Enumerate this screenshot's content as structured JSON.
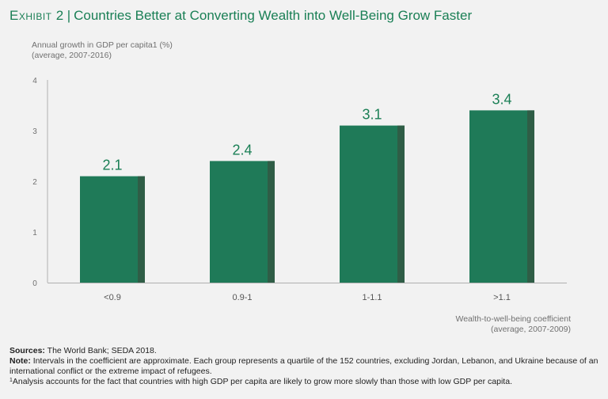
{
  "title": {
    "exhibit": "Exhibit 2",
    "separator": "|",
    "text": "Countries Better at Converting Wealth into Well-Being Grow Faster"
  },
  "chart_data": {
    "type": "bar",
    "categories": [
      "<0.9",
      "0.9-1",
      "1-1.1",
      ">1.1"
    ],
    "values": [
      2.1,
      2.4,
      3.1,
      3.4
    ],
    "value_labels": [
      "2.1",
      "2.4",
      "3.1",
      "3.4"
    ],
    "ylabel_line1": "Annual growth in GDP per capita1 (%)",
    "ylabel_line2": "(average, 2007-2016)",
    "xlabel_line1": "Wealth-to-well-being coefficient",
    "xlabel_line2": "(average, 2007-2009)",
    "ylim": [
      0,
      4
    ],
    "yticks": [
      "0",
      "1",
      "2",
      "3",
      "4"
    ],
    "bar_color": "#1f7a58",
    "bar_shade_color": "#2f5d46",
    "label_color": "#1a7f55",
    "grid": false
  },
  "footer": {
    "sources_label": "Sources:",
    "sources_text": "The World Bank; SEDA 2018.",
    "note_label": "Note:",
    "note_text": "Intervals in the coefficient are approximate. Each group represents a quartile of the 152 countries, excluding Jordan, Lebanon, and Ukraine because of an international conflict or the extreme impact of refugees.",
    "footnote_marker": "1",
    "footnote_text": "Analysis accounts for the fact that countries with high GDP per capita are likely to grow more slowly than those with low GDP per capita."
  }
}
